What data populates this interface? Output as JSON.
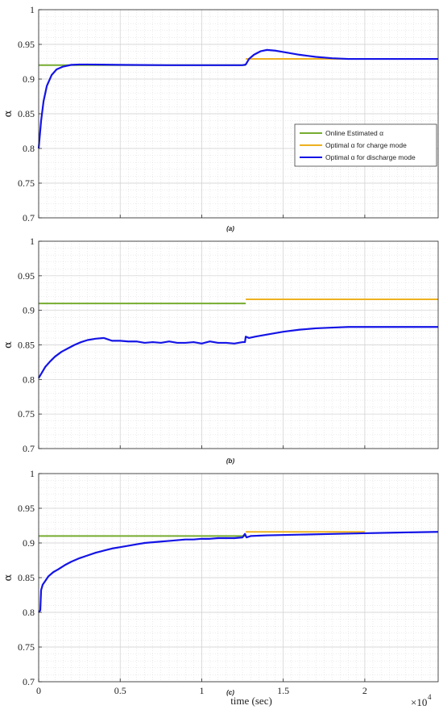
{
  "chart_data": [
    {
      "type": "line",
      "panel_label": "(a)",
      "ylabel": "α",
      "xlabel": "",
      "xlim": [
        0,
        24500
      ],
      "ylim": [
        0.7,
        1.0
      ],
      "yticks": [
        "0.7",
        "0.75",
        "0.8",
        "0.85",
        "0.9",
        "0.95",
        "1"
      ],
      "xticks": [],
      "grid": true,
      "legend": {
        "placement": "center-right",
        "entries": [
          {
            "name": "Online Estimated α",
            "color": "#77ac30"
          },
          {
            "name": "Optimal α for charge mode",
            "color": "#edb120"
          },
          {
            "name": "Optimal α for discharge mode",
            "color": "#1414e6"
          }
        ]
      },
      "series": [
        {
          "name": "Online Estimated α",
          "color": "#77ac30",
          "x": [
            0,
            12700
          ],
          "y": [
            0.92,
            0.92
          ]
        },
        {
          "name": "Optimal α for charge mode",
          "color": "#edb120",
          "x": [
            12700,
            24500
          ],
          "y": [
            0.929,
            0.929
          ]
        },
        {
          "name": "Optimal α for discharge mode",
          "color": "#1414e6",
          "x": [
            0,
            150,
            300,
            500,
            800,
            1100,
            1500,
            2000,
            2500,
            3000,
            5000,
            8000,
            10000,
            12500,
            12700,
            12900,
            13200,
            13600,
            14000,
            14500,
            15000,
            16000,
            17000,
            18000,
            19000,
            20000,
            22000,
            24500
          ],
          "y": [
            0.8,
            0.84,
            0.868,
            0.89,
            0.906,
            0.914,
            0.918,
            0.9205,
            0.921,
            0.921,
            0.9205,
            0.92,
            0.92,
            0.92,
            0.921,
            0.929,
            0.935,
            0.94,
            0.942,
            0.941,
            0.939,
            0.935,
            0.932,
            0.93,
            0.929,
            0.929,
            0.929,
            0.929
          ]
        }
      ]
    },
    {
      "type": "line",
      "panel_label": "(b)",
      "ylabel": "α",
      "xlabel": "",
      "xlim": [
        0,
        24500
      ],
      "ylim": [
        0.7,
        1.0
      ],
      "yticks": [
        "0.7",
        "0.75",
        "0.8",
        "0.85",
        "0.9",
        "0.95",
        "1"
      ],
      "xticks": [],
      "grid": true,
      "series": [
        {
          "name": "Online Estimated α",
          "color": "#77ac30",
          "x": [
            0,
            12700
          ],
          "y": [
            0.91,
            0.91
          ]
        },
        {
          "name": "Optimal α for charge mode",
          "color": "#edb120",
          "x": [
            12700,
            24500
          ],
          "y": [
            0.916,
            0.916
          ]
        },
        {
          "name": "Optimal α for discharge mode",
          "color": "#1414e6",
          "x": [
            0,
            200,
            400,
            700,
            1000,
            1400,
            1800,
            2200,
            2600,
            3000,
            3500,
            4000,
            4500,
            5000,
            5500,
            6000,
            6500,
            7000,
            7500,
            8000,
            8500,
            9000,
            9500,
            10000,
            10500,
            11000,
            11500,
            12000,
            12500,
            12650,
            12700,
            12900,
            13300,
            14000,
            15000,
            16000,
            17000,
            18000,
            19000,
            20000,
            21000,
            22000,
            23000,
            24500
          ],
          "y": [
            0.802,
            0.81,
            0.818,
            0.826,
            0.833,
            0.84,
            0.845,
            0.85,
            0.854,
            0.857,
            0.859,
            0.86,
            0.856,
            0.856,
            0.855,
            0.855,
            0.853,
            0.854,
            0.853,
            0.855,
            0.853,
            0.853,
            0.854,
            0.852,
            0.855,
            0.853,
            0.853,
            0.852,
            0.854,
            0.854,
            0.862,
            0.86,
            0.862,
            0.865,
            0.869,
            0.872,
            0.874,
            0.875,
            0.876,
            0.876,
            0.876,
            0.876,
            0.876,
            0.876
          ]
        }
      ]
    },
    {
      "type": "line",
      "panel_label": "(c)",
      "ylabel": "α",
      "xlabel": "time (sec)",
      "xlim": [
        0,
        24500
      ],
      "ylim": [
        0.7,
        1.0
      ],
      "yticks": [
        "0.7",
        "0.75",
        "0.8",
        "0.85",
        "0.9",
        "0.95",
        "1"
      ],
      "xticks": [
        "0",
        "0.5",
        "1",
        "1.5",
        "2"
      ],
      "xtick_values": [
        0,
        5000,
        10000,
        15000,
        20000
      ],
      "x_exponent": "×10",
      "x_exponent_power": "4",
      "grid": true,
      "series": [
        {
          "name": "Online Estimated α",
          "color": "#77ac30",
          "x": [
            0,
            12700
          ],
          "y": [
            0.91,
            0.91
          ]
        },
        {
          "name": "Optimal α for charge mode",
          "color": "#edb120",
          "x": [
            12700,
            20000
          ],
          "y": [
            0.916,
            0.916
          ]
        },
        {
          "name": "Optimal α for discharge mode",
          "color": "#1414e6",
          "x": [
            0,
            100,
            150,
            250,
            400,
            600,
            900,
            1200,
            1600,
            2000,
            2500,
            3000,
            3500,
            4000,
            4500,
            5000,
            5500,
            6000,
            6500,
            7000,
            7500,
            8000,
            8500,
            9000,
            9500,
            10000,
            10500,
            11000,
            11500,
            12000,
            12500,
            12650,
            12750,
            13000,
            14000,
            16000,
            18000,
            20000,
            22000,
            24500
          ],
          "y": [
            0.8,
            0.803,
            0.832,
            0.84,
            0.845,
            0.852,
            0.858,
            0.862,
            0.868,
            0.873,
            0.878,
            0.882,
            0.886,
            0.889,
            0.892,
            0.894,
            0.896,
            0.898,
            0.9,
            0.901,
            0.902,
            0.903,
            0.904,
            0.905,
            0.905,
            0.906,
            0.906,
            0.907,
            0.907,
            0.907,
            0.908,
            0.913,
            0.908,
            0.91,
            0.911,
            0.912,
            0.913,
            0.914,
            0.915,
            0.916
          ]
        }
      ]
    }
  ]
}
